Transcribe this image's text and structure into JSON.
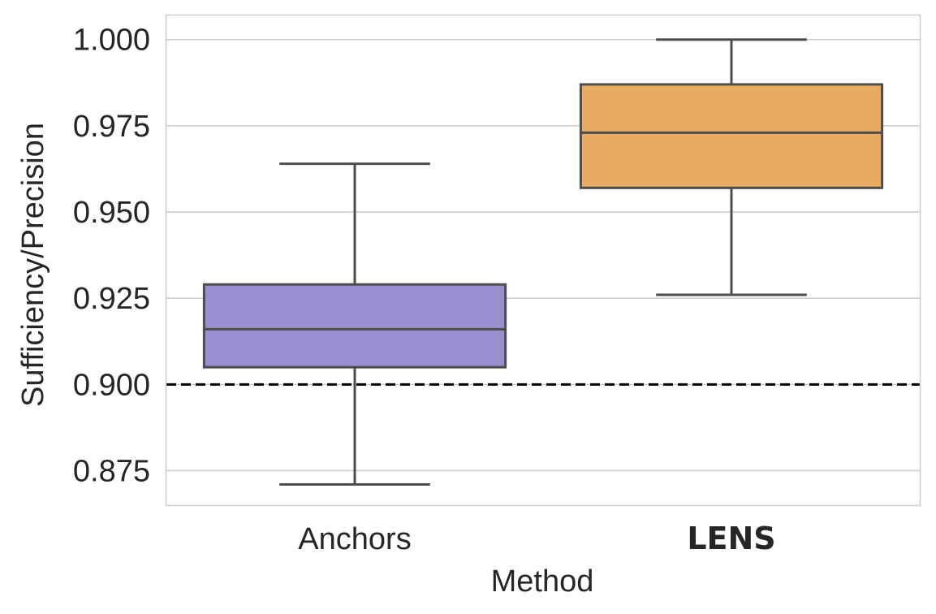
{
  "chart_data": {
    "type": "box",
    "title": "",
    "xlabel": "Method",
    "ylabel": "Sufficiency/Precision",
    "ylim": [
      0.865,
      1.007
    ],
    "yticks": [
      "0.875",
      "0.900",
      "0.925",
      "0.950",
      "0.975",
      "1.000"
    ],
    "grid": "horizontal",
    "reference_line": {
      "y": 0.9,
      "style": "dashed",
      "color": "#000000"
    },
    "categories": [
      "Anchors",
      "LENS"
    ],
    "category_bold": [
      false,
      true
    ],
    "boxes": [
      {
        "category": "Anchors",
        "whisker_low": 0.871,
        "q1": 0.905,
        "median": 0.916,
        "q3": 0.929,
        "whisker_high": 0.964,
        "color": "#9a8fd1"
      },
      {
        "category": "LENS",
        "whisker_low": 0.926,
        "q1": 0.957,
        "median": 0.973,
        "q3": 0.987,
        "whisker_high": 1.0,
        "color": "#e8ac60"
      }
    ]
  }
}
